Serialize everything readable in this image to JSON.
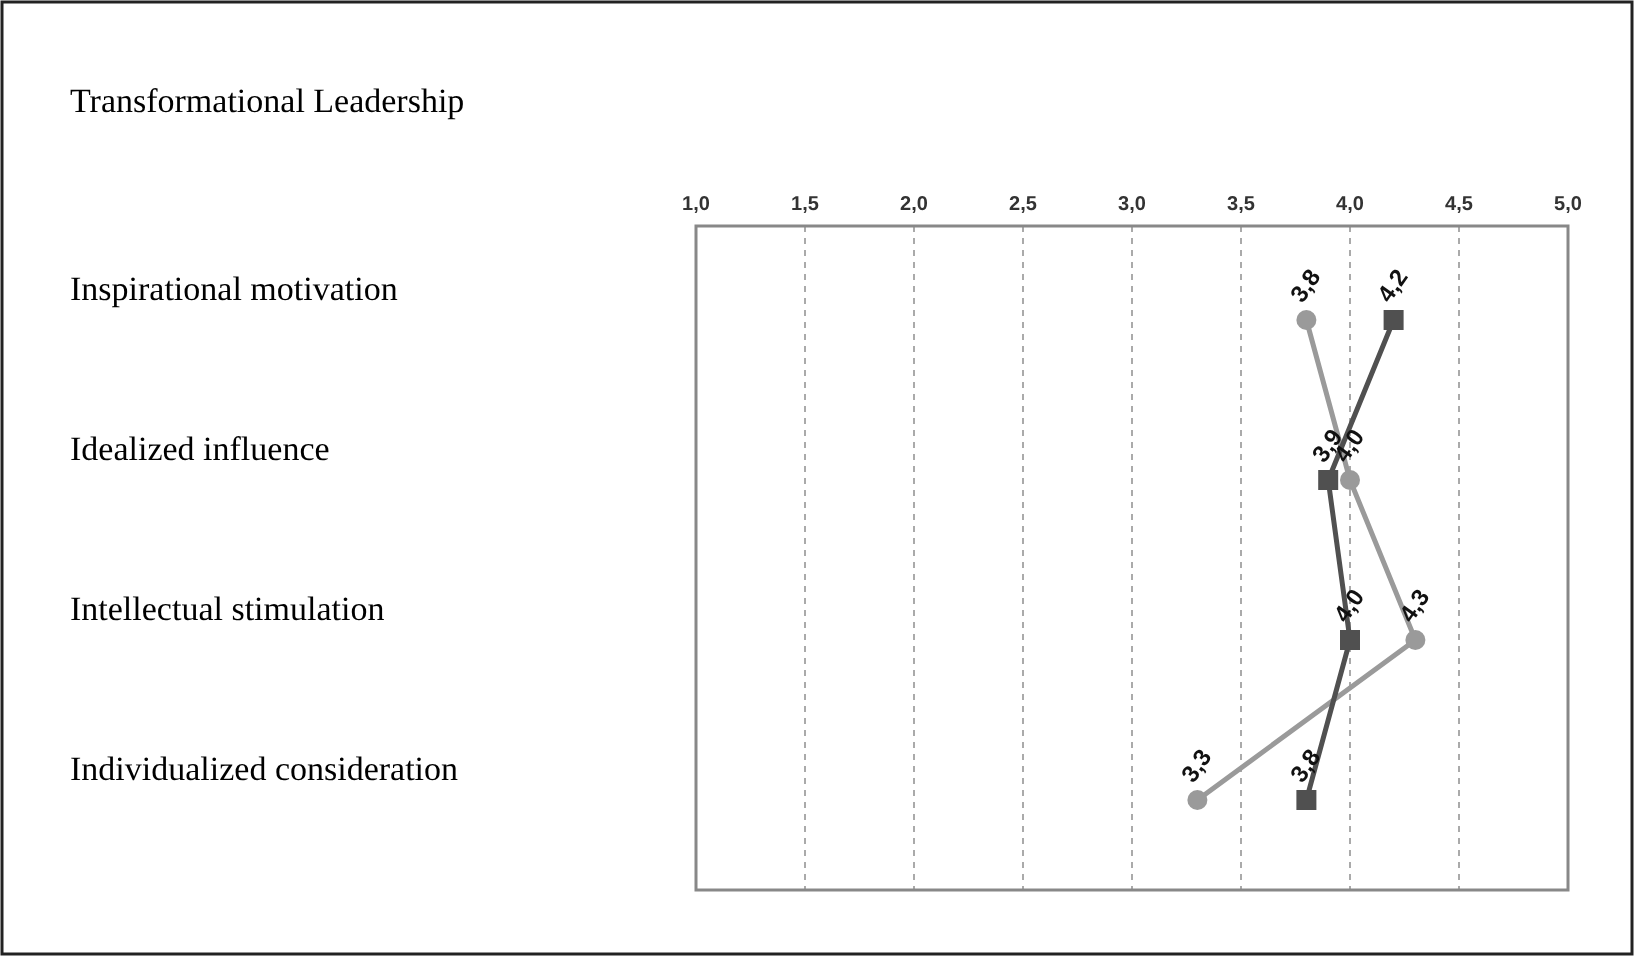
{
  "chart_data": {
    "type": "line",
    "orientation": "horizontal",
    "title": "Transformational Leadership",
    "categories": [
      "Inspirational motivation",
      "Idealized influence",
      "Intellectual stimulation",
      "Individualized consideration"
    ],
    "series": [
      {
        "color": "#9a9a9a",
        "marker": "circle",
        "values": [
          3.8,
          4.0,
          4.3,
          3.3
        ],
        "value_labels": [
          "3,8",
          "4,0",
          "4,3",
          "3,3"
        ]
      },
      {
        "color": "#505050",
        "marker": "square",
        "values": [
          4.2,
          3.9,
          4.0,
          3.8
        ],
        "value_labels": [
          "4,2",
          "3,9",
          "4,0",
          "3,8"
        ]
      }
    ],
    "xlim": [
      1,
      5
    ],
    "xticks": [
      {
        "value": 1,
        "label": "1,0"
      },
      {
        "value": 1.5,
        "label": "1,5"
      },
      {
        "value": 2,
        "label": "2,0"
      },
      {
        "value": 2.5,
        "label": "2,5"
      },
      {
        "value": 3,
        "label": "3,0"
      },
      {
        "value": 3.5,
        "label": "3,5"
      },
      {
        "value": 4,
        "label": "4,0"
      },
      {
        "value": 4.5,
        "label": "4,5"
      },
      {
        "value": 5,
        "label": "5,0"
      }
    ],
    "grid": "x",
    "line_style": "solid"
  }
}
